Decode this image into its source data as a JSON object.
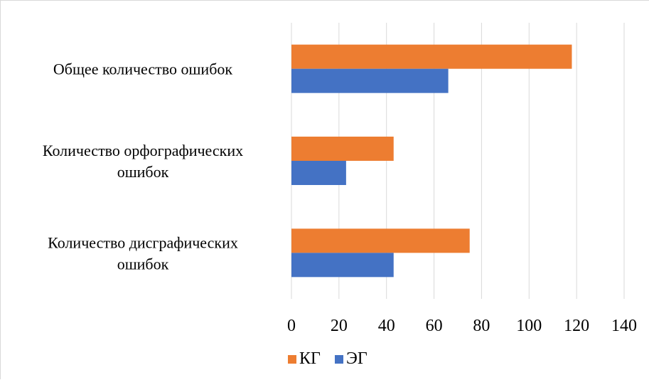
{
  "chart_data": {
    "type": "bar",
    "orientation": "horizontal",
    "categories": [
      [
        "Общее количество ошибок"
      ],
      [
        "Количество орфографических",
        "ошибок"
      ],
      [
        "Количество дисграфических",
        "ошибок"
      ]
    ],
    "series": [
      {
        "name": "КГ",
        "color": "#ED7D31",
        "values": [
          118,
          43,
          75
        ]
      },
      {
        "name": "ЭГ",
        "color": "#4472C4",
        "values": [
          66,
          23,
          43
        ]
      }
    ],
    "xlim": [
      0,
      140
    ],
    "xticks": [
      "0",
      "20",
      "40",
      "60",
      "80",
      "100",
      "120",
      "140"
    ],
    "grid": true,
    "legend": "bottom"
  }
}
